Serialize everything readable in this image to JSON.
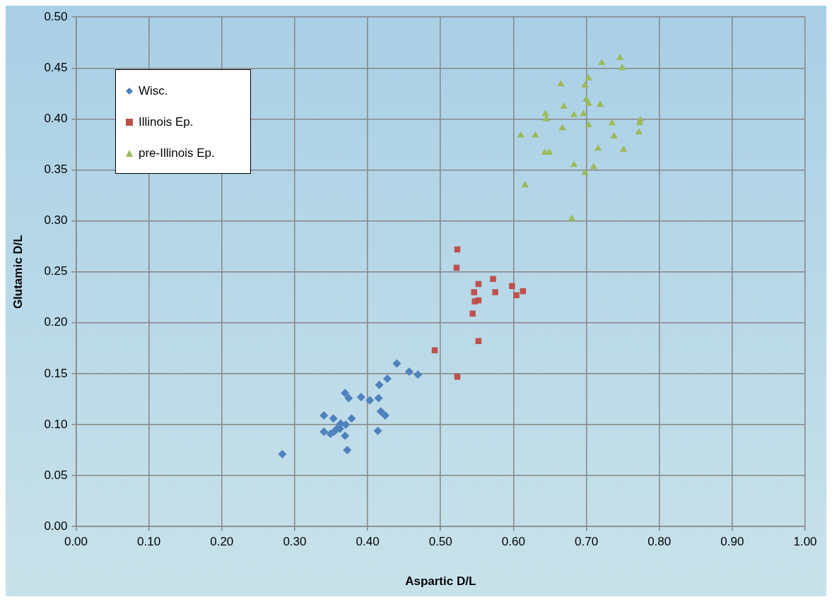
{
  "chart_data": {
    "type": "scatter",
    "xlabel": "Aspartic D/L",
    "ylabel": "Glutamic D/L",
    "xlim": [
      0,
      1
    ],
    "ylim": [
      0,
      0.5
    ],
    "xticks": [
      {
        "value": 0,
        "label": "0.00"
      },
      {
        "value": 0.1,
        "label": "0.10"
      },
      {
        "value": 0.2,
        "label": "0.20"
      },
      {
        "value": 0.3,
        "label": "0.30"
      },
      {
        "value": 0.4,
        "label": "0.40"
      },
      {
        "value": 0.5,
        "label": "0.50"
      },
      {
        "value": 0.6,
        "label": "0.60"
      },
      {
        "value": 0.7,
        "label": "0.70"
      },
      {
        "value": 0.8,
        "label": "0.80"
      },
      {
        "value": 0.9,
        "label": "0.90"
      },
      {
        "value": 1,
        "label": "1.00"
      }
    ],
    "yticks": [
      {
        "value": 0,
        "label": "0.00"
      },
      {
        "value": 0.05,
        "label": "0.05"
      },
      {
        "value": 0.1,
        "label": "0.10"
      },
      {
        "value": 0.15,
        "label": "0.15"
      },
      {
        "value": 0.2,
        "label": "0.20"
      },
      {
        "value": 0.25,
        "label": "0.25"
      },
      {
        "value": 0.3,
        "label": "0.30"
      },
      {
        "value": 0.35,
        "label": "0.35"
      },
      {
        "value": 0.4,
        "label": "0.40"
      },
      {
        "value": 0.45,
        "label": "0.45"
      },
      {
        "value": 0.5,
        "label": "0.50"
      }
    ],
    "grid": true,
    "legend": "top left",
    "series": [
      {
        "name": "Wisc.",
        "color": "#4f81bd",
        "marker": "diamond",
        "x": [
          0.44,
          0.457,
          0.469,
          0.427,
          0.416,
          0.369,
          0.374,
          0.391,
          0.403,
          0.415,
          0.418,
          0.424,
          0.34,
          0.353,
          0.378,
          0.363,
          0.37,
          0.34,
          0.349,
          0.354,
          0.358,
          0.362,
          0.369,
          0.414,
          0.372,
          0.283
        ],
        "values": [
          0.16,
          0.152,
          0.149,
          0.145,
          0.139,
          0.131,
          0.126,
          0.127,
          0.124,
          0.126,
          0.113,
          0.109,
          0.109,
          0.106,
          0.106,
          0.101,
          0.1,
          0.093,
          0.091,
          0.093,
          0.096,
          0.096,
          0.089,
          0.094,
          0.075,
          0.071
        ]
      },
      {
        "name": "Illinois Ep.",
        "color": "#c0504d",
        "marker": "square",
        "x": [
          0.523,
          0.522,
          0.552,
          0.572,
          0.546,
          0.575,
          0.598,
          0.613,
          0.604,
          0.547,
          0.552,
          0.544,
          0.552,
          0.492,
          0.523
        ],
        "values": [
          0.272,
          0.254,
          0.238,
          0.243,
          0.23,
          0.23,
          0.236,
          0.231,
          0.227,
          0.221,
          0.222,
          0.209,
          0.182,
          0.173,
          0.147
        ]
      },
      {
        "name": "pre-Illinois Ep.",
        "color": "#9bbb59",
        "marker": "triangle",
        "x": [
          0.721,
          0.746,
          0.749,
          0.703,
          0.698,
          0.665,
          0.7,
          0.703,
          0.719,
          0.669,
          0.696,
          0.683,
          0.644,
          0.645,
          0.667,
          0.703,
          0.735,
          0.774,
          0.773,
          0.772,
          0.738,
          0.61,
          0.63,
          0.643,
          0.649,
          0.716,
          0.751,
          0.683,
          0.71,
          0.698,
          0.616,
          0.68
        ],
        "values": [
          0.455,
          0.46,
          0.45,
          0.44,
          0.433,
          0.434,
          0.419,
          0.415,
          0.414,
          0.412,
          0.405,
          0.404,
          0.405,
          0.4,
          0.391,
          0.394,
          0.396,
          0.399,
          0.396,
          0.387,
          0.383,
          0.384,
          0.384,
          0.367,
          0.367,
          0.371,
          0.37,
          0.355,
          0.353,
          0.347,
          0.335,
          0.302
        ]
      }
    ]
  }
}
